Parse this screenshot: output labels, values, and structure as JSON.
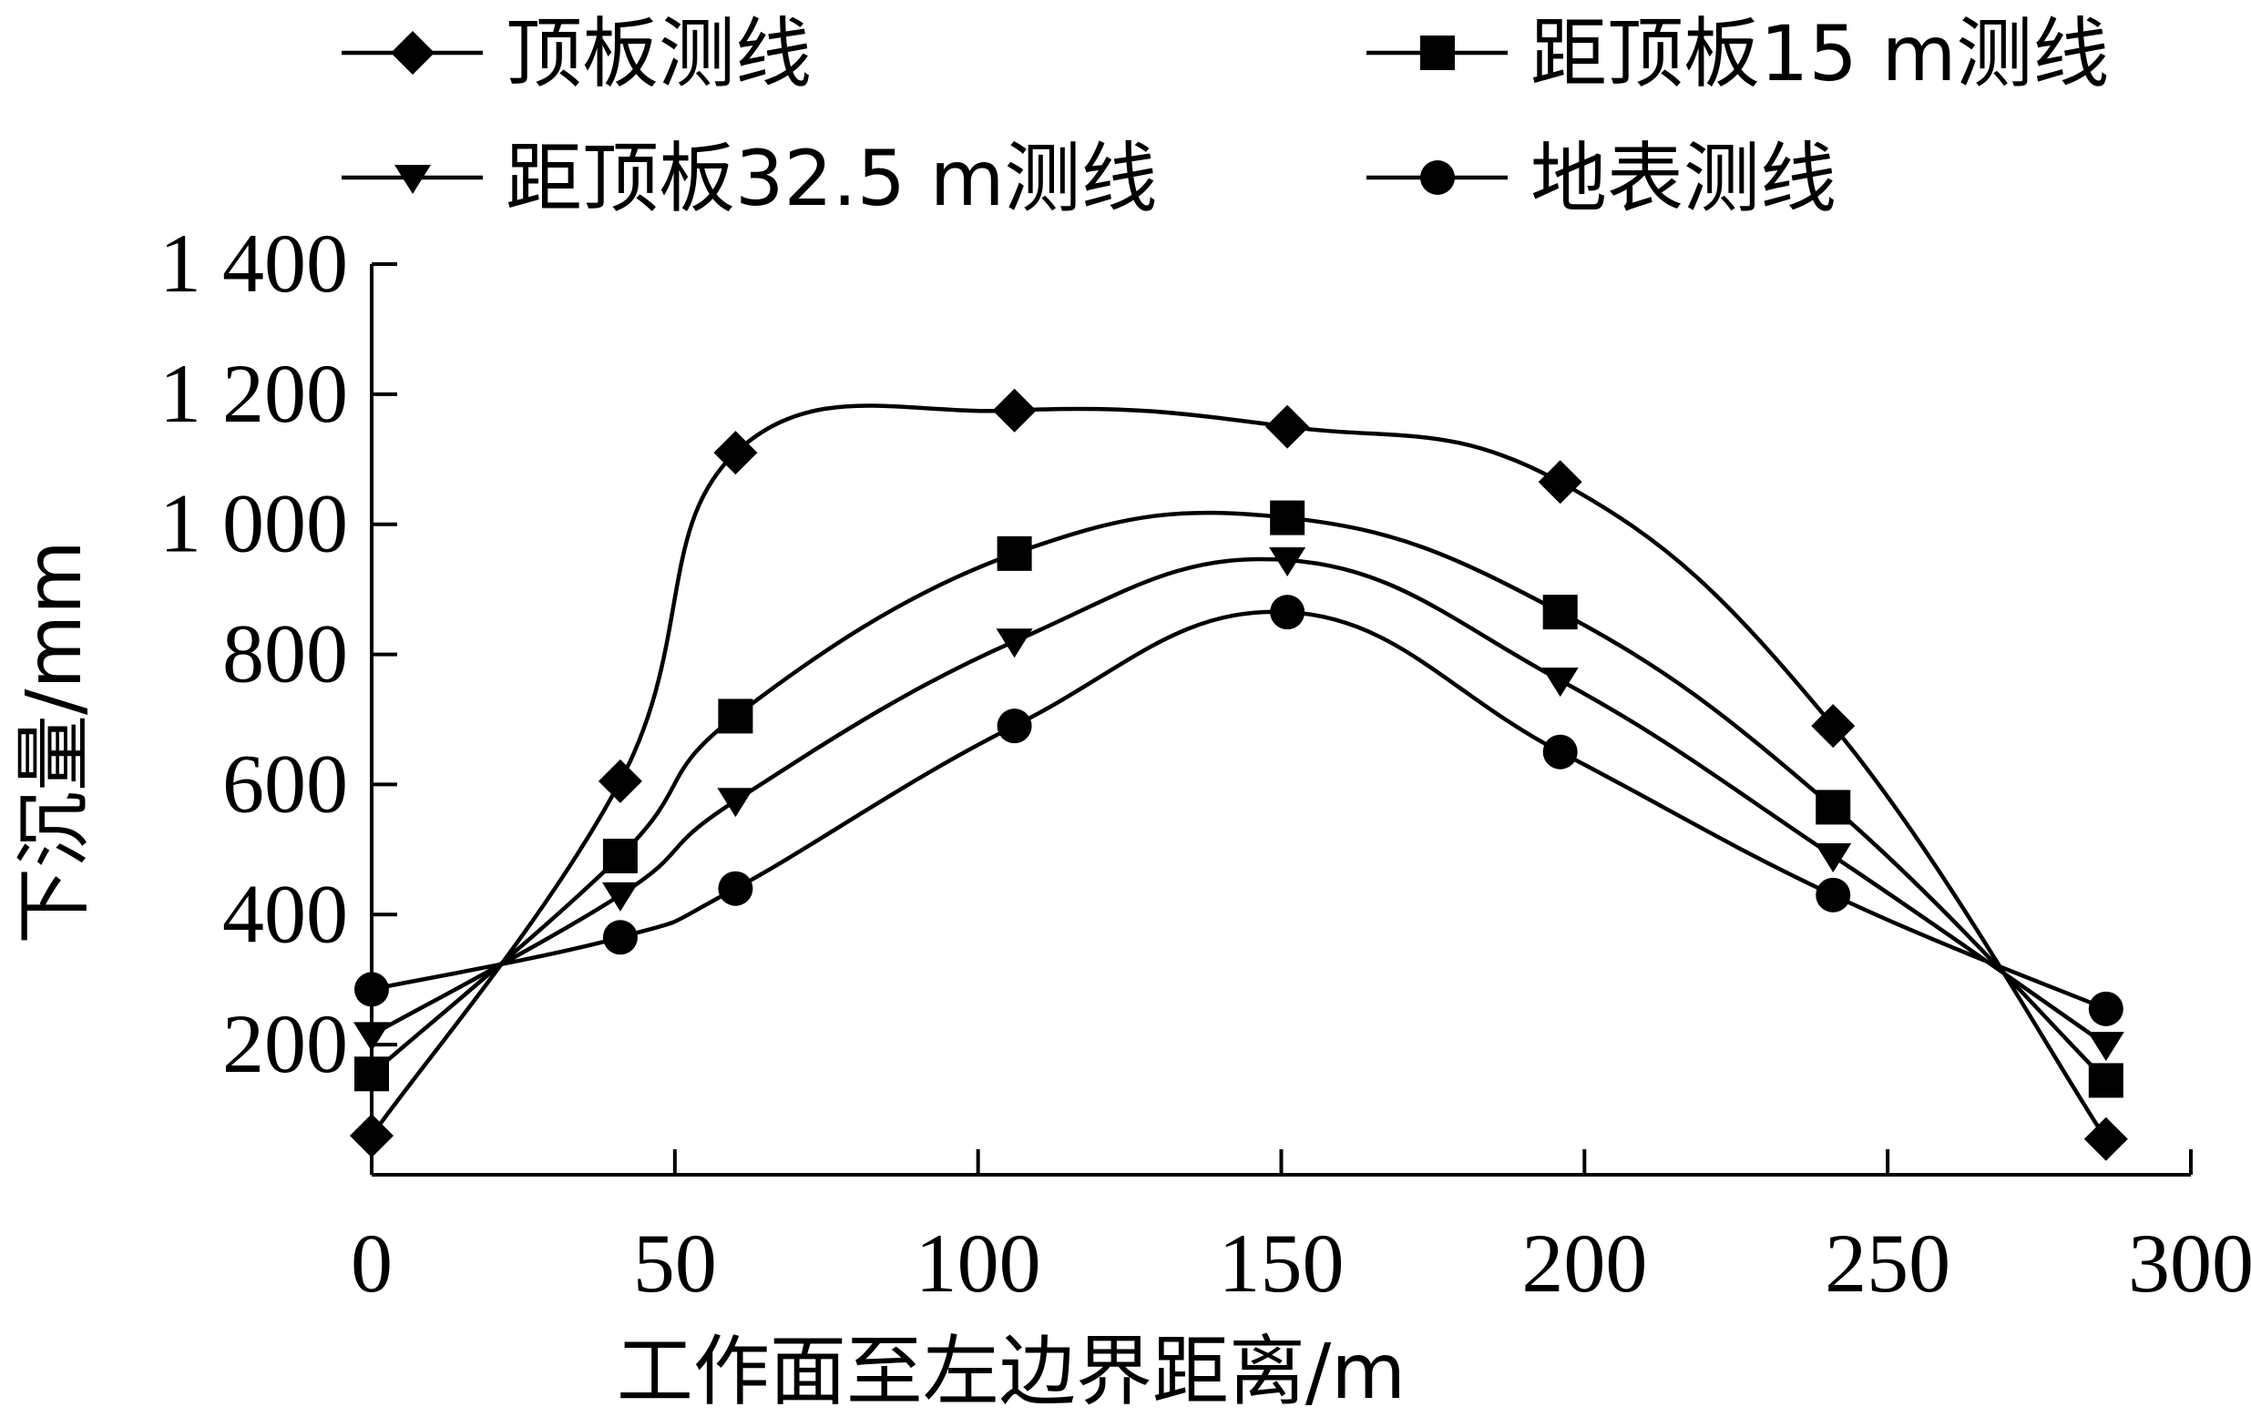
{
  "chart_data": {
    "type": "line",
    "xlabel": "工作面至左边界距离/m",
    "ylabel": "下沉量/mm",
    "xlim": [
      0,
      300
    ],
    "ylim": [
      0,
      1400
    ],
    "xticks": [
      0,
      50,
      100,
      150,
      200,
      250,
      300
    ],
    "xtick_labels": [
      "0",
      "50",
      "100",
      "150",
      "200",
      "250",
      "300"
    ],
    "yticks": [
      200,
      400,
      600,
      800,
      1000,
      1200,
      1400
    ],
    "ytick_labels": [
      "200",
      "400",
      "600",
      "800",
      "1 000",
      "1 200",
      "1 400"
    ],
    "grid": false,
    "legend_position": "top",
    "series": [
      {
        "name": "顶板测线",
        "marker": "diamond",
        "x": [
          0,
          41,
          60,
          106,
          151,
          196,
          241,
          286
        ],
        "y": [
          60,
          605,
          1110,
          1175,
          1150,
          1065,
          690,
          55
        ]
      },
      {
        "name": "距顶板15 m测线",
        "marker": "square",
        "x": [
          0,
          41,
          60,
          106,
          151,
          196,
          241,
          286
        ],
        "y": [
          155,
          490,
          705,
          955,
          1010,
          865,
          565,
          145
        ]
      },
      {
        "name": "距顶板32.5 m测线",
        "marker": "triangle",
        "x": [
          0,
          41,
          60,
          106,
          151,
          196,
          241,
          286
        ],
        "y": [
          215,
          430,
          575,
          820,
          945,
          760,
          490,
          200
        ]
      },
      {
        "name": "地表测线",
        "marker": "circle",
        "x": [
          0,
          41,
          60,
          106,
          151,
          196,
          241,
          286
        ],
        "y": [
          285,
          365,
          440,
          690,
          865,
          650,
          430,
          255
        ]
      }
    ]
  }
}
